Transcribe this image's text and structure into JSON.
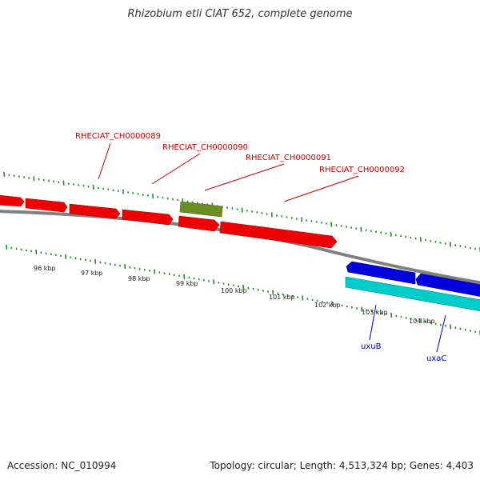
{
  "title": "Rhizobium etli CIAT 652, complete genome",
  "footer": {
    "accession": "Accession: NC_010994",
    "summary": "Topology: circular; Length: 4,513,324 bp; Genes: 4,403"
  },
  "colors": {
    "forward_gene": "#ee0000",
    "other_gene": "#6b8e23",
    "reverse_gene_blue": "#0000dd",
    "reverse_gene_cyan": "#00cccc",
    "backbone": "#808080",
    "ticks": "#228b22"
  },
  "tick_labels": [
    "96 kbp",
    "97 kbp",
    "98 kbp",
    "99 kbp",
    "100 kbp",
    "101 kbp",
    "102 kbp",
    "103 kbp",
    "104 kbp"
  ],
  "gene_labels": {
    "g89": "RHECIAT_CH0000089",
    "g90": "RHECIAT_CH0000090",
    "g91": "RHECIAT_CH0000091",
    "g92": "RHECIAT_CH0000092",
    "uxuB": "uxuB",
    "uxaC": "uxaC"
  }
}
